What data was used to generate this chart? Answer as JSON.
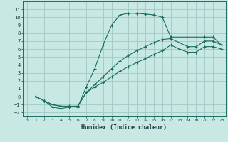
{
  "xlabel": "Humidex (Indice chaleur)",
  "xlim": [
    -0.5,
    23.5
  ],
  "ylim": [
    -2.5,
    12
  ],
  "xticks": [
    0,
    1,
    2,
    3,
    4,
    5,
    6,
    7,
    8,
    9,
    10,
    11,
    12,
    13,
    14,
    15,
    16,
    17,
    18,
    19,
    20,
    21,
    22,
    23
  ],
  "yticks": [
    -2,
    -1,
    0,
    1,
    2,
    3,
    4,
    5,
    6,
    7,
    8,
    9,
    10,
    11
  ],
  "bg_color": "#c8e8e4",
  "line_color": "#1a6e60",
  "grid_color": "#a0c8c4",
  "curves": [
    {
      "x": [
        1,
        2,
        3,
        4,
        5,
        6,
        7,
        8,
        9,
        10,
        11,
        12,
        13,
        14,
        15,
        16,
        17,
        21,
        22,
        23
      ],
      "y": [
        0,
        -0.5,
        -1.3,
        -1.5,
        -1.3,
        -1.3,
        1.2,
        3.5,
        6.5,
        9.0,
        10.3,
        10.5,
        10.5,
        10.4,
        10.3,
        10.0,
        7.5,
        7.5,
        7.5,
        6.5
      ]
    },
    {
      "x": [
        1,
        2,
        3,
        4,
        5,
        6,
        7,
        8,
        9,
        10,
        11,
        12,
        13,
        14,
        15,
        16,
        17,
        18,
        19,
        20,
        21,
        22,
        23
      ],
      "y": [
        0,
        -0.5,
        -1.0,
        -1.2,
        -1.2,
        -1.2,
        0.5,
        1.5,
        2.5,
        3.5,
        4.5,
        5.2,
        5.8,
        6.3,
        6.8,
        7.2,
        7.3,
        6.8,
        6.3,
        6.3,
        7.0,
        7.0,
        6.5
      ]
    },
    {
      "x": [
        1,
        2,
        3,
        4,
        5,
        6,
        7,
        8,
        9,
        10,
        11,
        12,
        13,
        14,
        15,
        16,
        17,
        18,
        19,
        20,
        21,
        22,
        23
      ],
      "y": [
        0,
        -0.5,
        -1.0,
        -1.2,
        -1.2,
        -1.2,
        0.5,
        1.2,
        1.8,
        2.5,
        3.2,
        3.8,
        4.3,
        4.8,
        5.3,
        5.8,
        6.5,
        6.0,
        5.6,
        5.6,
        6.3,
        6.3,
        6.0
      ]
    }
  ]
}
